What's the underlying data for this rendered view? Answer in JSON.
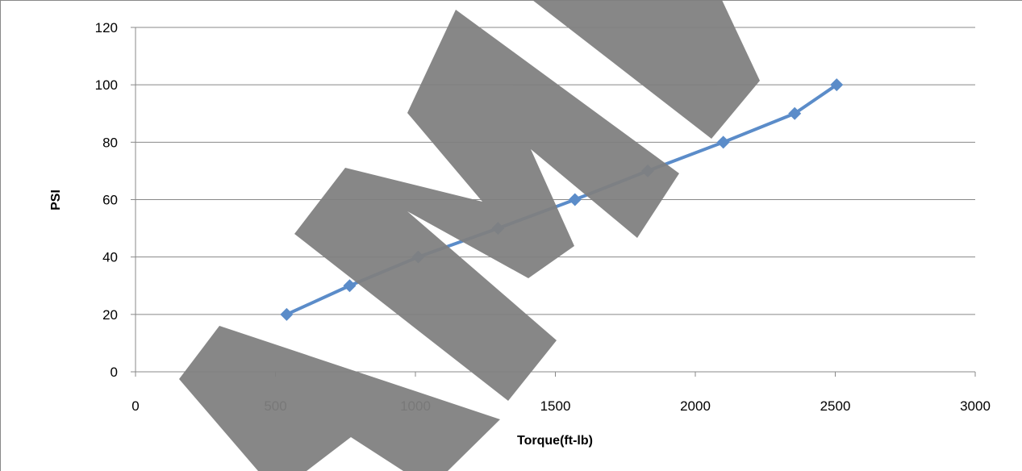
{
  "chart_data": {
    "type": "line",
    "title": "",
    "xlabel": "Torque(ft-lb)",
    "ylabel": "PSI",
    "xlim": [
      0,
      3000
    ],
    "ylim": [
      0,
      120
    ],
    "x_ticks": [
      0,
      500,
      1000,
      1500,
      2000,
      2500,
      3000
    ],
    "y_ticks": [
      0,
      20,
      40,
      60,
      80,
      100,
      120
    ],
    "grid": "horizontal",
    "legend": "none",
    "series": [
      {
        "color": "#5b8cc9",
        "marker": "diamond",
        "points": [
          {
            "x": 540,
            "y": 20
          },
          {
            "x": 765,
            "y": 30
          },
          {
            "x": 1010,
            "y": 40
          },
          {
            "x": 1295,
            "y": 50
          },
          {
            "x": 1570,
            "y": 60
          },
          {
            "x": 1830,
            "y": 70
          },
          {
            "x": 2100,
            "y": 80
          },
          {
            "x": 2355,
            "y": 90
          },
          {
            "x": 2505,
            "y": 100
          }
        ]
      }
    ],
    "watermark_text": "AMI",
    "watermark_color": "#808080"
  }
}
